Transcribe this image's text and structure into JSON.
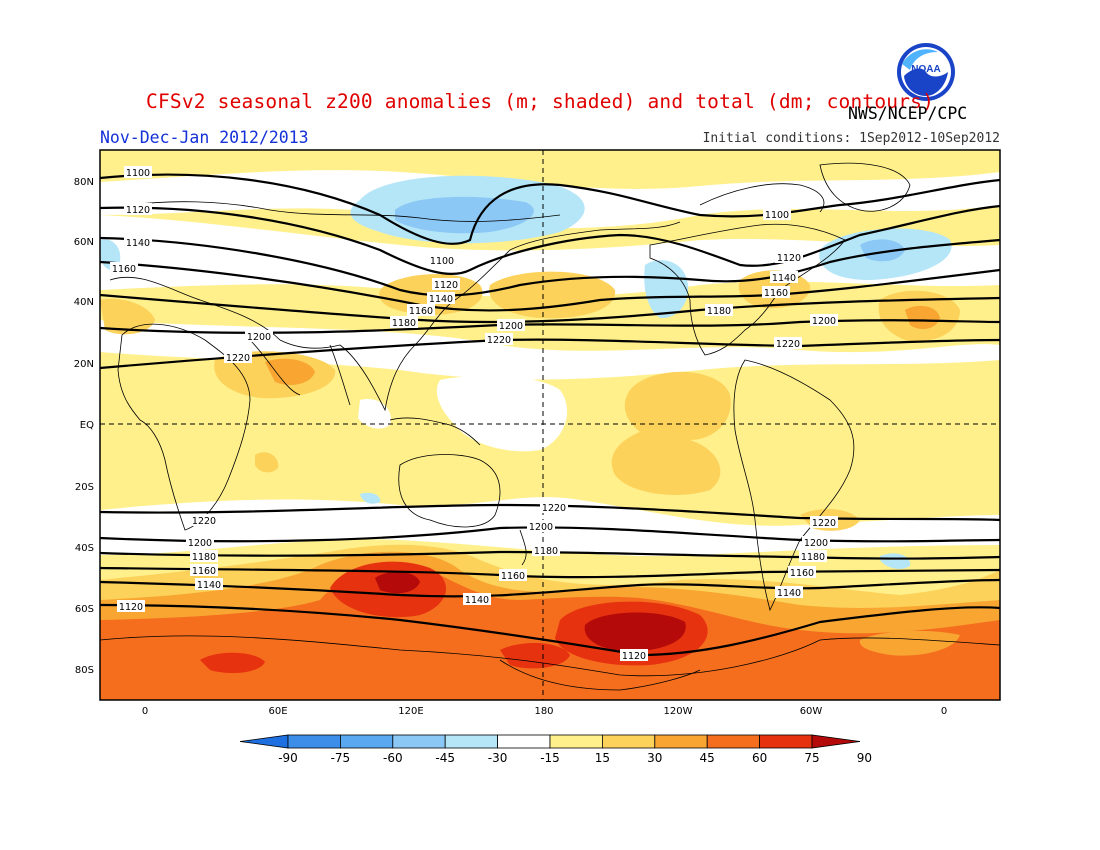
{
  "header": {
    "title": "CFSv2 seasonal z200 anomalies (m; shaded) and total (dm; contours)",
    "agency": "NWS/NCEP/CPC",
    "period": "Nov-Dec-Jan 2012/2013",
    "initial_conditions": "Initial conditions: 1Sep2012-10Sep2012"
  },
  "logo": {
    "icon": "noaa-logo",
    "text": "NOAA"
  },
  "map": {
    "lat_labels": [
      "80N",
      "60N",
      "40N",
      "20N",
      "EQ",
      "20S",
      "40S",
      "60S",
      "80S"
    ],
    "lon_labels": [
      "0",
      "60E",
      "120E",
      "180",
      "120W",
      "60W",
      "0"
    ],
    "contour_labels": [
      "1100",
      "1120",
      "1140",
      "1160",
      "1180",
      "1200",
      "1220"
    ]
  },
  "colorbar": {
    "labels": [
      "-90",
      "-75",
      "-60",
      "-45",
      "-30",
      "-15",
      "15",
      "30",
      "45",
      "60",
      "75",
      "90"
    ],
    "colors": [
      "#1e6fe0",
      "#3c8ee8",
      "#5aa8f0",
      "#8cc8f5",
      "#b4e6f8",
      "#ffffff",
      "#fff08c",
      "#fcd25a",
      "#f8a532",
      "#f56e1e",
      "#e6320f",
      "#b40a0a"
    ]
  }
}
